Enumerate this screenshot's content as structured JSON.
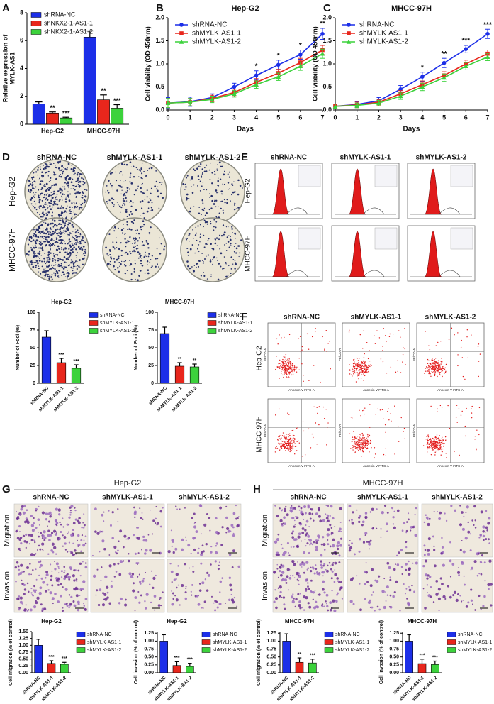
{
  "panel_labels": [
    "A",
    "B",
    "C",
    "D",
    "E",
    "F",
    "G",
    "H"
  ],
  "panel_D": {
    "columns": [
      "shRNA-NC",
      "shMYLK-AS1-1",
      "shMYLK-AS1-2"
    ],
    "rows": [
      "Hep-G2",
      "MHCC-97H"
    ]
  },
  "panel_E": {
    "columns": [
      "shRNA-NC",
      "shMYLK-AS1-1",
      "shMYLK-AS1-2"
    ],
    "rows": [
      "Hep-G2",
      "MHCC-97H"
    ]
  },
  "panel_F": {
    "columns": [
      "shRNA-NC",
      "shMYLK-AS1-1",
      "shMYLK-AS1-2"
    ],
    "rows": [
      "Hep-G2",
      "MHCC-97H"
    ],
    "x_axis": "Annexin-V FITC-A",
    "y_axis": "PE/CD-A"
  },
  "panel_G": {
    "title": "Hep-G2",
    "columns": [
      "shRNA-NC",
      "shMYLK-AS1-1",
      "shMYLK-AS1-2"
    ],
    "rows": [
      "Migration",
      "Invasion"
    ]
  },
  "panel_H": {
    "title": "MHCC-97H",
    "columns": [
      "shRNA-NC",
      "shMYLK-AS1-1",
      "shMYLK-AS1-2"
    ],
    "rows": [
      "Migration",
      "Invasion"
    ]
  },
  "chart_data": [
    {
      "type": "bar",
      "y_label": [
        "Relative expression of",
        "MYLK-AS1"
      ],
      "categories": [
        "Hep-G2",
        "MHCC-97H"
      ],
      "series": [
        {
          "name": "shRNA-NC",
          "color": "#1c2fe8",
          "values": [
            1.45,
            6.25
          ],
          "errors": [
            0.15,
            0.45
          ],
          "annotations": [
            null,
            null
          ]
        },
        {
          "name": "shNKX2-1-AS1-1",
          "color": "#e8261c",
          "values": [
            0.8,
            1.75
          ],
          "errors": [
            0.08,
            0.35
          ],
          "annotations": [
            "**",
            "**"
          ]
        },
        {
          "name": "shNKX2-1-AS1-2",
          "color": "#3cd23c",
          "values": [
            0.45,
            1.15
          ],
          "errors": [
            0.05,
            0.25
          ],
          "annotations": [
            "***",
            "***"
          ]
        }
      ],
      "ylim": [
        0,
        8
      ],
      "yticks": [
        0,
        2,
        4,
        6,
        8
      ],
      "legend": "top-left"
    },
    {
      "type": "line",
      "title": "Hep-G2",
      "x_label": "Days",
      "y_label": "Cell viability (OD 450nm)",
      "x": [
        0,
        1,
        2,
        3,
        4,
        5,
        6,
        7
      ],
      "xlim": [
        0,
        7
      ],
      "xticks": [
        0,
        1,
        2,
        3,
        4,
        5,
        6,
        7
      ],
      "ylim": [
        0,
        2
      ],
      "yticks": [
        {
          "value": 0,
          "label": "0.0"
        },
        0.5,
        {
          "value": 1,
          "label": "1.0"
        },
        1.5,
        {
          "value": 2,
          "label": "2.0"
        }
      ],
      "series": [
        {
          "name": "shRNA-NC",
          "color": "#1c2fe8",
          "marker": "circle",
          "values": [
            0.15,
            0.18,
            0.27,
            0.5,
            0.75,
            0.98,
            1.2,
            1.65
          ],
          "errors": [
            0.12,
            0.1,
            0.08,
            0.08,
            0.1,
            0.1,
            0.1,
            0.12
          ]
        },
        {
          "name": "shMYLK-AS1-1",
          "color": "#e8261c",
          "marker": "square",
          "values": [
            0.15,
            0.17,
            0.25,
            0.38,
            0.6,
            0.8,
            1.03,
            1.3
          ],
          "errors": [
            0.1,
            0.08,
            0.07,
            0.07,
            0.08,
            0.08,
            0.09,
            0.1
          ]
        },
        {
          "name": "shMYLK-AS1-2",
          "color": "#3cd23c",
          "marker": "triangle",
          "values": [
            0.15,
            0.17,
            0.23,
            0.35,
            0.55,
            0.72,
            0.95,
            1.22
          ],
          "errors": [
            0.1,
            0.08,
            0.07,
            0.07,
            0.08,
            0.08,
            0.09,
            0.1
          ]
        }
      ],
      "annotations": [
        null,
        null,
        null,
        null,
        "*",
        "*",
        "*",
        "**"
      ],
      "legend": "top-left"
    },
    {
      "type": "line",
      "title": "MHCC-97H",
      "x_label": "Days",
      "y_label": "Cell viability (OD 450nm)",
      "x": [
        0,
        1,
        2,
        3,
        4,
        5,
        6,
        7
      ],
      "xlim": [
        0,
        7
      ],
      "xticks": [
        0,
        1,
        2,
        3,
        4,
        5,
        6,
        7
      ],
      "ylim": [
        0,
        2
      ],
      "yticks": [
        {
          "value": 0,
          "label": "0.0"
        },
        0.5,
        {
          "value": 1,
          "label": "1.0"
        },
        1.5,
        {
          "value": 2,
          "label": "2.0"
        }
      ],
      "series": [
        {
          "name": "shRNA-NC",
          "color": "#1c2fe8",
          "marker": "circle",
          "values": [
            0.08,
            0.12,
            0.2,
            0.45,
            0.72,
            1.02,
            1.32,
            1.65
          ],
          "errors": [
            0.05,
            0.06,
            0.07,
            0.08,
            0.1,
            0.1,
            0.08,
            0.1
          ]
        },
        {
          "name": "shMYLK-AS1-1",
          "color": "#e8261c",
          "marker": "square",
          "values": [
            0.08,
            0.11,
            0.17,
            0.35,
            0.55,
            0.75,
            1.0,
            1.22
          ],
          "errors": [
            0.05,
            0.06,
            0.06,
            0.07,
            0.08,
            0.08,
            0.08,
            0.08
          ]
        },
        {
          "name": "shMYLK-AS1-2",
          "color": "#3cd23c",
          "marker": "triangle",
          "values": [
            0.08,
            0.1,
            0.15,
            0.3,
            0.5,
            0.7,
            0.95,
            1.15
          ],
          "errors": [
            0.05,
            0.05,
            0.06,
            0.07,
            0.08,
            0.08,
            0.08,
            0.08
          ]
        }
      ],
      "annotations": [
        null,
        null,
        null,
        null,
        "*",
        "**",
        "***",
        "***"
      ],
      "legend": "top-left"
    },
    {
      "type": "bar",
      "title": "Hep-G2",
      "y_label": "Number of Foci (%)",
      "categories": [
        "shRNA-NC",
        "shMYLK-AS1-1",
        "shMYLK-AS1-2"
      ],
      "values": [
        65,
        29,
        21
      ],
      "errors": [
        9,
        6,
        5
      ],
      "annotations": [
        null,
        "***",
        "***"
      ],
      "colors": [
        "#1c2fe8",
        "#e8261c",
        "#3cd23c"
      ],
      "ylim": [
        0,
        100
      ],
      "yticks": [
        0,
        25,
        50,
        75,
        100
      ],
      "legend": "right"
    },
    {
      "type": "bar",
      "title": "MHCC-97H",
      "y_label": "Number of Foci (%)",
      "categories": [
        "shRNA-NC",
        "shMYLK-AS1-1",
        "shMYLK-AS1-2"
      ],
      "values": [
        70,
        24,
        23
      ],
      "errors": [
        9,
        5,
        4
      ],
      "annotations": [
        null,
        "**",
        "**"
      ],
      "colors": [
        "#1c2fe8",
        "#e8261c",
        "#3cd23c"
      ],
      "ylim": [
        0,
        100
      ],
      "yticks": [
        0,
        25,
        50,
        75,
        100
      ],
      "legend": "right"
    },
    {
      "type": "bar",
      "title": "Hep-G2",
      "y_label": "Cell migration (% of control)",
      "categories": [
        "shRNA-NC",
        "shMYLK-AS1-1",
        "shMYLK-AS1-2"
      ],
      "values": [
        1.0,
        0.34,
        0.31
      ],
      "errors": [
        0.22,
        0.1,
        0.07
      ],
      "annotations": [
        null,
        "***",
        "***"
      ],
      "colors": [
        "#1c2fe8",
        "#e8261c",
        "#3cd23c"
      ],
      "ylim": [
        0,
        1.5
      ],
      "yticks": [
        {
          "value": 0,
          "label": "0.00"
        },
        0.25,
        {
          "value": 0.5,
          "label": "0.50"
        },
        0.75,
        {
          "value": 1,
          "label": "1.00"
        },
        1.25,
        {
          "value": 1.5,
          "label": "1.50"
        }
      ],
      "legend": "right"
    },
    {
      "type": "bar",
      "title": "Hep-G2",
      "y_label": "Cell invasion (% of control)",
      "categories": [
        "shRNA-NC",
        "shMYLK-AS1-1",
        "shMYLK-AS1-2"
      ],
      "values": [
        1.0,
        0.23,
        0.2
      ],
      "errors": [
        0.2,
        0.12,
        0.1
      ],
      "annotations": [
        null,
        "***",
        "***"
      ],
      "colors": [
        "#1c2fe8",
        "#e8261c",
        "#3cd23c"
      ],
      "ylim": [
        0,
        1.3
      ],
      "yticks": [
        {
          "value": 0,
          "label": "0.00"
        },
        0.25,
        {
          "value": 0.5,
          "label": "0.50"
        },
        0.75,
        {
          "value": 1,
          "label": "1.00"
        },
        1.25
      ],
      "legend": "right"
    },
    {
      "type": "bar",
      "title": "MHCC-97H",
      "y_label": "Cell migration (% of control)",
      "categories": [
        "shRNA-NC",
        "shMYLK-AS1-1",
        "shMYLK-AS1-2"
      ],
      "values": [
        1.0,
        0.33,
        0.31
      ],
      "errors": [
        0.23,
        0.14,
        0.12
      ],
      "annotations": [
        null,
        "**",
        "***"
      ],
      "colors": [
        "#1c2fe8",
        "#e8261c",
        "#3cd23c"
      ],
      "ylim": [
        0,
        1.3
      ],
      "yticks": [
        {
          "value": 0,
          "label": "0.00"
        },
        0.25,
        {
          "value": 0.5,
          "label": "0.50"
        },
        0.75,
        {
          "value": 1,
          "label": "1.00"
        },
        1.25
      ],
      "legend": "right"
    },
    {
      "type": "bar",
      "title": "MHCC-97H",
      "y_label": "Cell invasion (% of control)",
      "categories": [
        "shRNA-NC",
        "shMYLK-AS1-1",
        "shMYLK-AS1-2"
      ],
      "values": [
        1.0,
        0.29,
        0.26
      ],
      "errors": [
        0.2,
        0.14,
        0.11
      ],
      "annotations": [
        null,
        "***",
        "***"
      ],
      "colors": [
        "#1c2fe8",
        "#e8261c",
        "#3cd23c"
      ],
      "ylim": [
        0,
        1.3
      ],
      "yticks": [
        {
          "value": 0,
          "label": "0.00"
        },
        0.25,
        {
          "value": 0.5,
          "label": "0.50"
        },
        0.75,
        {
          "value": 1,
          "label": "1.00"
        },
        1.25
      ],
      "legend": "right"
    }
  ]
}
